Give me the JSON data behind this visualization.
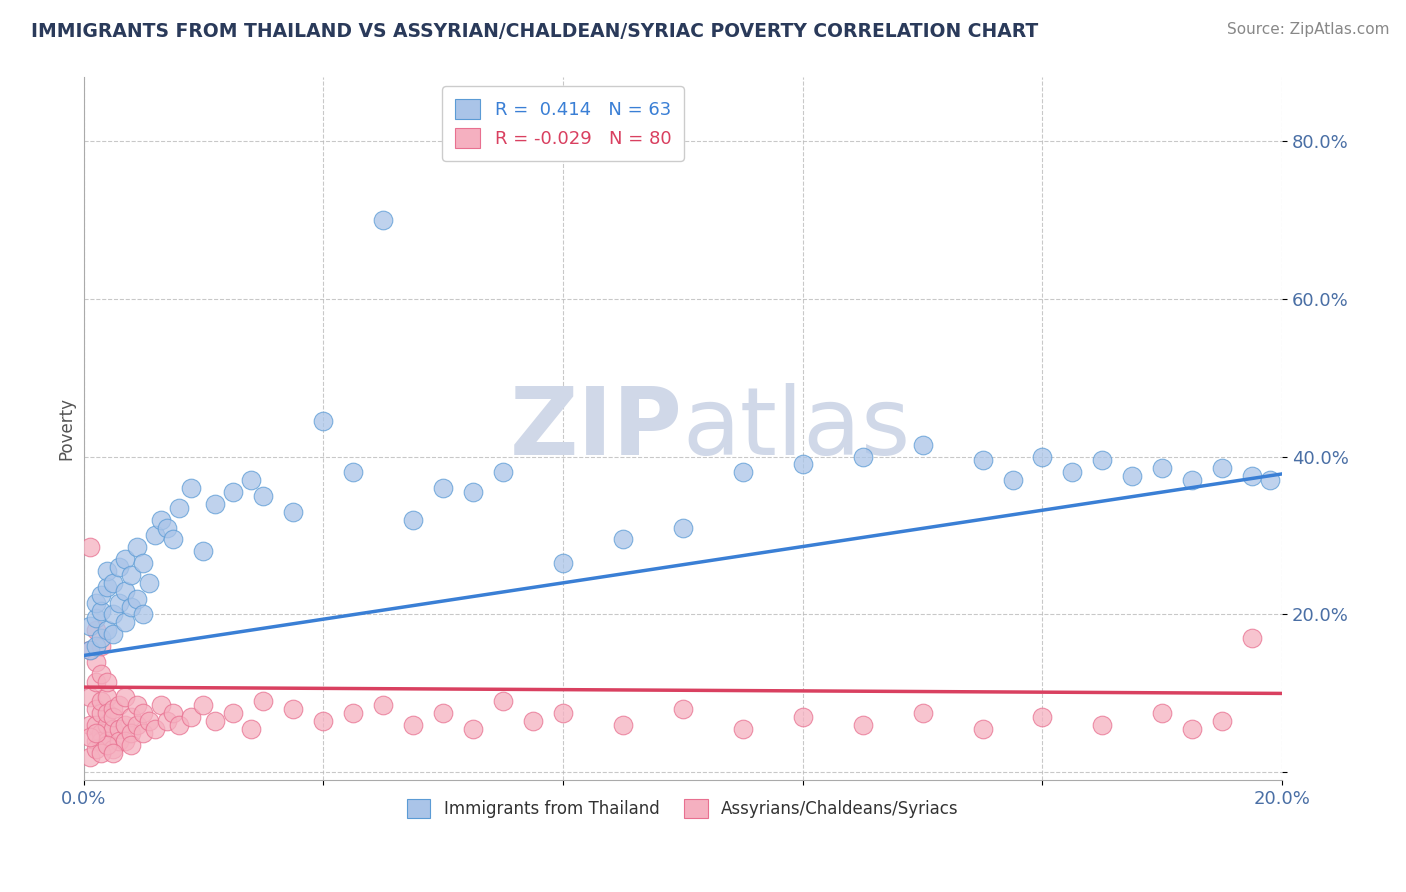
{
  "title": "IMMIGRANTS FROM THAILAND VS ASSYRIAN/CHALDEAN/SYRIAC POVERTY CORRELATION CHART",
  "source": "Source: ZipAtlas.com",
  "ylabel": "Poverty",
  "ytick_vals": [
    0.0,
    0.2,
    0.4,
    0.6,
    0.8
  ],
  "xlim": [
    0,
    0.2
  ],
  "ylim": [
    -0.01,
    0.88
  ],
  "blue_R": 0.414,
  "blue_N": 63,
  "pink_R": -0.029,
  "pink_N": 80,
  "blue_color": "#aac4e8",
  "pink_color": "#f5b0c0",
  "blue_edge_color": "#5b9bd5",
  "pink_edge_color": "#e87090",
  "blue_line_color": "#3a7fd5",
  "pink_line_color": "#d94060",
  "watermark_color": "#d0d8e8",
  "text_color": "#4a6fa5",
  "title_color": "#2a3a5a",
  "source_color": "#888888",
  "legend_label_blue": "Immigrants from Thailand",
  "legend_label_pink": "Assyrians/Chaldeans/Syriacs",
  "blue_line_x0": 0.0,
  "blue_line_x1": 0.2,
  "blue_line_y0": 0.148,
  "blue_line_y1": 0.378,
  "pink_line_x0": 0.0,
  "pink_line_x1": 0.2,
  "pink_line_y0": 0.108,
  "pink_line_y1": 0.1,
  "blue_scatter_x": [
    0.001,
    0.001,
    0.002,
    0.002,
    0.002,
    0.003,
    0.003,
    0.003,
    0.004,
    0.004,
    0.004,
    0.005,
    0.005,
    0.005,
    0.006,
    0.006,
    0.007,
    0.007,
    0.007,
    0.008,
    0.008,
    0.009,
    0.009,
    0.01,
    0.01,
    0.011,
    0.012,
    0.013,
    0.014,
    0.015,
    0.016,
    0.018,
    0.02,
    0.022,
    0.025,
    0.028,
    0.03,
    0.035,
    0.04,
    0.045,
    0.05,
    0.055,
    0.06,
    0.065,
    0.07,
    0.08,
    0.09,
    0.1,
    0.11,
    0.12,
    0.13,
    0.14,
    0.15,
    0.155,
    0.16,
    0.165,
    0.17,
    0.175,
    0.18,
    0.185,
    0.19,
    0.195,
    0.198
  ],
  "blue_scatter_y": [
    0.155,
    0.185,
    0.16,
    0.195,
    0.215,
    0.17,
    0.205,
    0.225,
    0.18,
    0.235,
    0.255,
    0.175,
    0.2,
    0.24,
    0.215,
    0.26,
    0.19,
    0.23,
    0.27,
    0.21,
    0.25,
    0.22,
    0.285,
    0.2,
    0.265,
    0.24,
    0.3,
    0.32,
    0.31,
    0.295,
    0.335,
    0.36,
    0.28,
    0.34,
    0.355,
    0.37,
    0.35,
    0.33,
    0.445,
    0.38,
    0.7,
    0.32,
    0.36,
    0.355,
    0.38,
    0.265,
    0.295,
    0.31,
    0.38,
    0.39,
    0.4,
    0.415,
    0.395,
    0.37,
    0.4,
    0.38,
    0.395,
    0.375,
    0.385,
    0.37,
    0.385,
    0.375,
    0.37
  ],
  "pink_scatter_x": [
    0.001,
    0.001,
    0.001,
    0.001,
    0.002,
    0.002,
    0.002,
    0.002,
    0.002,
    0.003,
    0.003,
    0.003,
    0.003,
    0.003,
    0.004,
    0.004,
    0.004,
    0.004,
    0.005,
    0.005,
    0.005,
    0.005,
    0.006,
    0.006,
    0.006,
    0.007,
    0.007,
    0.007,
    0.008,
    0.008,
    0.008,
    0.009,
    0.009,
    0.01,
    0.01,
    0.011,
    0.012,
    0.013,
    0.014,
    0.015,
    0.016,
    0.018,
    0.02,
    0.022,
    0.025,
    0.028,
    0.03,
    0.035,
    0.04,
    0.045,
    0.05,
    0.055,
    0.06,
    0.065,
    0.07,
    0.075,
    0.08,
    0.09,
    0.1,
    0.11,
    0.12,
    0.13,
    0.14,
    0.15,
    0.16,
    0.17,
    0.18,
    0.185,
    0.19,
    0.195,
    0.002,
    0.003,
    0.004,
    0.001,
    0.002,
    0.003,
    0.004,
    0.005,
    0.001,
    0.002
  ],
  "pink_scatter_y": [
    0.285,
    0.155,
    0.095,
    0.06,
    0.14,
    0.08,
    0.115,
    0.06,
    0.04,
    0.125,
    0.075,
    0.05,
    0.09,
    0.04,
    0.06,
    0.095,
    0.075,
    0.04,
    0.08,
    0.055,
    0.03,
    0.07,
    0.085,
    0.055,
    0.04,
    0.095,
    0.06,
    0.04,
    0.07,
    0.05,
    0.035,
    0.085,
    0.06,
    0.075,
    0.05,
    0.065,
    0.055,
    0.085,
    0.065,
    0.075,
    0.06,
    0.07,
    0.085,
    0.065,
    0.075,
    0.055,
    0.09,
    0.08,
    0.065,
    0.075,
    0.085,
    0.06,
    0.075,
    0.055,
    0.09,
    0.065,
    0.075,
    0.06,
    0.08,
    0.055,
    0.07,
    0.06,
    0.075,
    0.055,
    0.07,
    0.06,
    0.075,
    0.055,
    0.065,
    0.17,
    0.18,
    0.16,
    0.115,
    0.02,
    0.03,
    0.025,
    0.035,
    0.025,
    0.045,
    0.05
  ]
}
